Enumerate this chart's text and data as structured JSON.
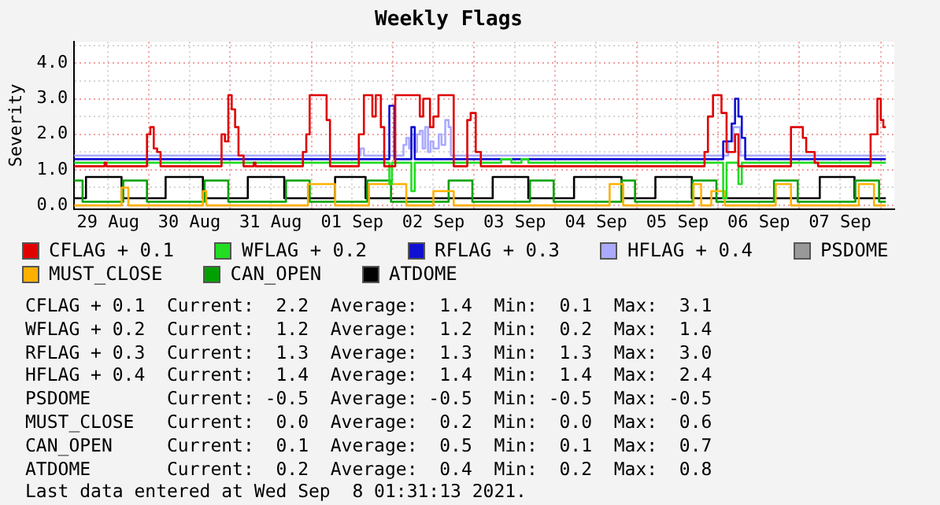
{
  "chart_data": {
    "type": "step",
    "title": "Weekly Flags",
    "ylabel": "Severity",
    "xlim": [
      "2021-08-29T02:00",
      "2021-09-08T04:00"
    ],
    "xticks": [
      {
        "value": "2021-08-30T00:00",
        "label": null
      },
      {
        "value": "2021-08-31T00:00",
        "label": null
      },
      {
        "value": "2021-09-01T00:00",
        "label": null
      },
      {
        "value": "2021-09-02T00:00",
        "label": null
      },
      {
        "value": "2021-09-03T00:00",
        "label": null
      },
      {
        "value": "2021-09-04T00:00",
        "label": null
      },
      {
        "value": "2021-09-05T00:00",
        "label": null
      },
      {
        "value": "2021-09-06T00:00",
        "label": null
      },
      {
        "value": "2021-09-07T00:00",
        "label": null
      },
      {
        "value": "2021-09-08T00:00",
        "label": null
      },
      {
        "value": "2021-08-29T12:00",
        "label": "29 Aug"
      },
      {
        "value": "2021-08-30T12:00",
        "label": "30 Aug"
      },
      {
        "value": "2021-08-31T12:00",
        "label": "31 Aug"
      },
      {
        "value": "2021-09-01T12:00",
        "label": "01 Sep"
      },
      {
        "value": "2021-09-02T12:00",
        "label": "02 Sep"
      },
      {
        "value": "2021-09-03T12:00",
        "label": "03 Sep"
      },
      {
        "value": "2021-09-04T12:00",
        "label": "04 Sep"
      },
      {
        "value": "2021-09-05T12:00",
        "label": "05 Sep"
      },
      {
        "value": "2021-09-06T12:00",
        "label": "06 Sep"
      },
      {
        "value": "2021-09-07T12:00",
        "label": "07 Sep"
      }
    ],
    "ylim": [
      -0.1,
      4.6
    ],
    "yticks": [
      {
        "value": 0,
        "label": "0.0"
      },
      {
        "value": 0.5,
        "label": null
      },
      {
        "value": 1,
        "label": "1.0"
      },
      {
        "value": 1.5,
        "label": null
      },
      {
        "value": 2,
        "label": "2.0"
      },
      {
        "value": 2.5,
        "label": null
      },
      {
        "value": 3,
        "label": "3.0"
      },
      {
        "value": 3.5,
        "label": null
      },
      {
        "value": 4,
        "label": "4.0"
      },
      {
        "value": 4.5,
        "label": null
      }
    ],
    "grid": true,
    "legend": "bottom",
    "series": [
      {
        "name": "CFLAG + 0.1",
        "color": "#e00000",
        "x": [
          "2021-08-29T02:00",
          "2021-08-29T11:00",
          "2021-08-29T11:30",
          "2021-08-29T23:30",
          "2021-08-30T00:30",
          "2021-08-30T01:30",
          "2021-08-30T02:30",
          "2021-08-30T03:30",
          "2021-08-30T21:30",
          "2021-08-30T22:30",
          "2021-08-30T23:30",
          "2021-08-31T00:30",
          "2021-08-31T01:30",
          "2021-08-31T02:30",
          "2021-08-31T04:00",
          "2021-08-31T07:00",
          "2021-08-31T07:30",
          "2021-08-31T21:30",
          "2021-08-31T22:30",
          "2021-08-31T23:30",
          "2021-09-01T04:30",
          "2021-09-01T05:30",
          "2021-09-01T14:00",
          "2021-09-01T15:30",
          "2021-09-01T18:00",
          "2021-09-01T19:00",
          "2021-09-01T20:30",
          "2021-09-01T21:30",
          "2021-09-02T00:45",
          "2021-09-02T08:00",
          "2021-09-02T09:00",
          "2021-09-02T11:00",
          "2021-09-02T12:00",
          "2021-09-02T13:30",
          "2021-09-02T18:00",
          "2021-09-02T22:00",
          "2021-09-02T23:00",
          "2021-09-03T00:30",
          "2021-09-03T02:00",
          "2021-09-05T20:00",
          "2021-09-05T21:00",
          "2021-09-05T22:30",
          "2021-09-06T01:00",
          "2021-09-06T02:30",
          "2021-09-06T05:00",
          "2021-09-06T06:00",
          "2021-09-06T21:30",
          "2021-09-07T01:00",
          "2021-09-07T02:00",
          "2021-09-07T04:30",
          "2021-09-07T05:30",
          "2021-09-07T21:00",
          "2021-09-07T23:00",
          "2021-09-08T00:00",
          "2021-09-08T00:45",
          "2021-09-08T01:30"
        ],
        "values": [
          1.1,
          1.2,
          1.1,
          2.0,
          2.2,
          1.6,
          1.5,
          1.1,
          2.0,
          1.8,
          3.1,
          2.7,
          2.2,
          1.4,
          1.1,
          1.2,
          1.1,
          1.5,
          2.0,
          3.1,
          2.4,
          1.1,
          2.0,
          3.1,
          2.5,
          3.1,
          2.2,
          1.1,
          3.1,
          2.5,
          3.0,
          2.2,
          2.5,
          3.1,
          1.1,
          2.4,
          2.6,
          1.5,
          1.1,
          1.5,
          2.5,
          3.1,
          2.6,
          1.5,
          2.0,
          1.1,
          2.2,
          1.9,
          1.5,
          1.2,
          1.1,
          2.0,
          3.0,
          2.4,
          2.2,
          2.2
        ]
      },
      {
        "name": "WFLAG + 0.2",
        "color": "#22dd22",
        "x": [
          "2021-08-29T02:00",
          "2021-09-01T23:00",
          "2021-09-01T23:45",
          "2021-09-02T05:30",
          "2021-09-02T06:30",
          "2021-09-03T08:00",
          "2021-09-03T11:00",
          "2021-09-03T14:00",
          "2021-09-03T16:00",
          "2021-09-06T01:30",
          "2021-09-06T02:30",
          "2021-09-06T06:00",
          "2021-09-06T07:00",
          "2021-09-08T01:30"
        ],
        "values": [
          1.2,
          0.6,
          1.2,
          0.4,
          1.2,
          1.3,
          1.2,
          1.3,
          1.2,
          0.2,
          1.2,
          0.6,
          1.2,
          1.2
        ]
      },
      {
        "name": "RFLAG + 0.3",
        "color": "#1010d0",
        "x": [
          "2021-08-29T02:00",
          "2021-09-01T23:00",
          "2021-09-02T00:30",
          "2021-09-02T05:30",
          "2021-09-02T06:30",
          "2021-09-06T01:30",
          "2021-09-06T04:00",
          "2021-09-06T05:00",
          "2021-09-06T06:00",
          "2021-09-06T07:00",
          "2021-09-06T08:00",
          "2021-09-08T01:30"
        ],
        "values": [
          1.3,
          2.8,
          1.3,
          2.2,
          1.3,
          1.8,
          2.3,
          3.0,
          2.5,
          1.9,
          1.3,
          1.3
        ]
      },
      {
        "name": "HFLAG + 0.4",
        "color": "#aaaaff",
        "x": [
          "2021-08-29T02:00",
          "2021-09-01T14:30",
          "2021-09-01T15:30",
          "2021-09-02T03:10",
          "2021-09-02T04:00",
          "2021-09-02T04:50",
          "2021-09-02T05:35",
          "2021-09-02T06:25",
          "2021-09-02T07:10",
          "2021-09-02T08:00",
          "2021-09-02T08:50",
          "2021-09-02T09:35",
          "2021-09-02T10:25",
          "2021-09-02T11:10",
          "2021-09-02T12:00",
          "2021-09-02T13:35",
          "2021-09-02T14:25",
          "2021-09-02T15:30",
          "2021-09-02T16:30",
          "2021-09-02T17:10",
          "2021-09-06T03:00",
          "2021-09-06T04:30",
          "2021-09-06T06:30",
          "2021-09-08T01:30"
        ],
        "values": [
          1.4,
          1.6,
          1.4,
          1.7,
          1.9,
          1.6,
          2.0,
          1.5,
          2.0,
          2.1,
          1.6,
          2.2,
          1.5,
          1.8,
          1.6,
          2.0,
          1.7,
          2.4,
          2.2,
          1.4,
          1.8,
          2.2,
          1.4,
          1.4
        ]
      },
      {
        "name": "PSDOME",
        "color": "#999999"
      },
      {
        "name": "MUST_CLOSE",
        "color": "#ffb000",
        "x": [
          "2021-08-29T02:00",
          "2021-08-29T16:00",
          "2021-08-29T18:00",
          "2021-08-30T16:00",
          "2021-08-30T17:00",
          "2021-08-31T23:00",
          "2021-09-01T07:00",
          "2021-09-01T17:00",
          "2021-09-02T04:00",
          "2021-09-02T12:00",
          "2021-09-02T18:00",
          "2021-09-04T16:00",
          "2021-09-04T20:00",
          "2021-09-05T16:45",
          "2021-09-05T19:00",
          "2021-09-05T22:00",
          "2021-09-06T02:00",
          "2021-09-06T17:00",
          "2021-09-06T21:30",
          "2021-09-07T17:30",
          "2021-09-07T22:00",
          "2021-09-08T01:30"
        ],
        "values": [
          0.0,
          0.5,
          0.0,
          0.4,
          0.0,
          0.6,
          0.0,
          0.6,
          0.0,
          0.4,
          0.0,
          0.6,
          0.0,
          0.6,
          0.0,
          0.4,
          0.0,
          0.6,
          0.0,
          0.6,
          0.0,
          0.0
        ]
      },
      {
        "name": "CAN_OPEN",
        "color": "#00a000",
        "x": [
          "2021-08-29T02:00",
          "2021-08-29T04:30",
          "2021-08-29T16:30",
          "2021-08-29T23:30",
          "2021-08-30T16:30",
          "2021-08-30T23:30",
          "2021-08-31T16:30",
          "2021-08-31T23:30",
          "2021-09-01T16:30",
          "2021-09-01T23:30",
          "2021-09-02T16:30",
          "2021-09-02T23:30",
          "2021-09-03T16:30",
          "2021-09-03T23:30",
          "2021-09-04T19:30",
          "2021-09-04T23:30",
          "2021-09-05T16:30",
          "2021-09-05T23:30",
          "2021-09-06T16:30",
          "2021-09-06T23:30",
          "2021-09-07T16:30",
          "2021-09-07T23:30",
          "2021-09-08T01:30"
        ],
        "values": [
          0.7,
          0.1,
          0.7,
          0.1,
          0.7,
          0.1,
          0.7,
          0.1,
          0.7,
          0.1,
          0.7,
          0.1,
          0.7,
          0.1,
          0.7,
          0.1,
          0.7,
          0.1,
          0.7,
          0.1,
          0.7,
          0.1,
          0.1
        ]
      },
      {
        "name": "ATDOME",
        "color": "#000000",
        "x": [
          "2021-08-29T02:00",
          "2021-08-29T05:30",
          "2021-08-29T16:00",
          "2021-08-30T05:00",
          "2021-08-30T16:00",
          "2021-08-31T05:15",
          "2021-08-31T16:00",
          "2021-09-01T07:00",
          "2021-09-01T16:00",
          "2021-09-03T05:30",
          "2021-09-03T16:00",
          "2021-09-04T05:30",
          "2021-09-04T19:30",
          "2021-09-05T05:30",
          "2021-09-05T16:15",
          "2021-09-07T06:00",
          "2021-09-07T16:15",
          "2021-09-08T01:30"
        ],
        "values": [
          0.2,
          0.8,
          0.2,
          0.8,
          0.2,
          0.8,
          0.2,
          0.8,
          0.2,
          0.8,
          0.2,
          0.8,
          0.2,
          0.8,
          0.2,
          0.8,
          0.2,
          0.2
        ]
      }
    ],
    "annotations": [
      "CFLAG + 0.1  Current:  2.2  Average:  1.4  Min:  0.1  Max:  3.1",
      "WFLAG + 0.2  Current:  1.2  Average:  1.2  Min:  0.2  Max:  1.4",
      "RFLAG + 0.3  Current:  1.3  Average:  1.3  Min:  1.3  Max:  3.0",
      "HFLAG + 0.4  Current:  1.4  Average:  1.4  Min:  1.4  Max:  2.4",
      "PSDOME       Current: -0.5  Average: -0.5  Min: -0.5  Max: -0.5",
      "MUST_CLOSE   Current:  0.0  Average:  0.2  Min:  0.0  Max:  0.6",
      "CAN_OPEN     Current:  0.1  Average:  0.5  Min:  0.1  Max:  0.7",
      "ATDOME       Current:  0.2  Average:  0.4  Min:  0.2  Max:  0.8",
      "Last data entered at Wed Sep  8 01:31:13 2021."
    ]
  }
}
